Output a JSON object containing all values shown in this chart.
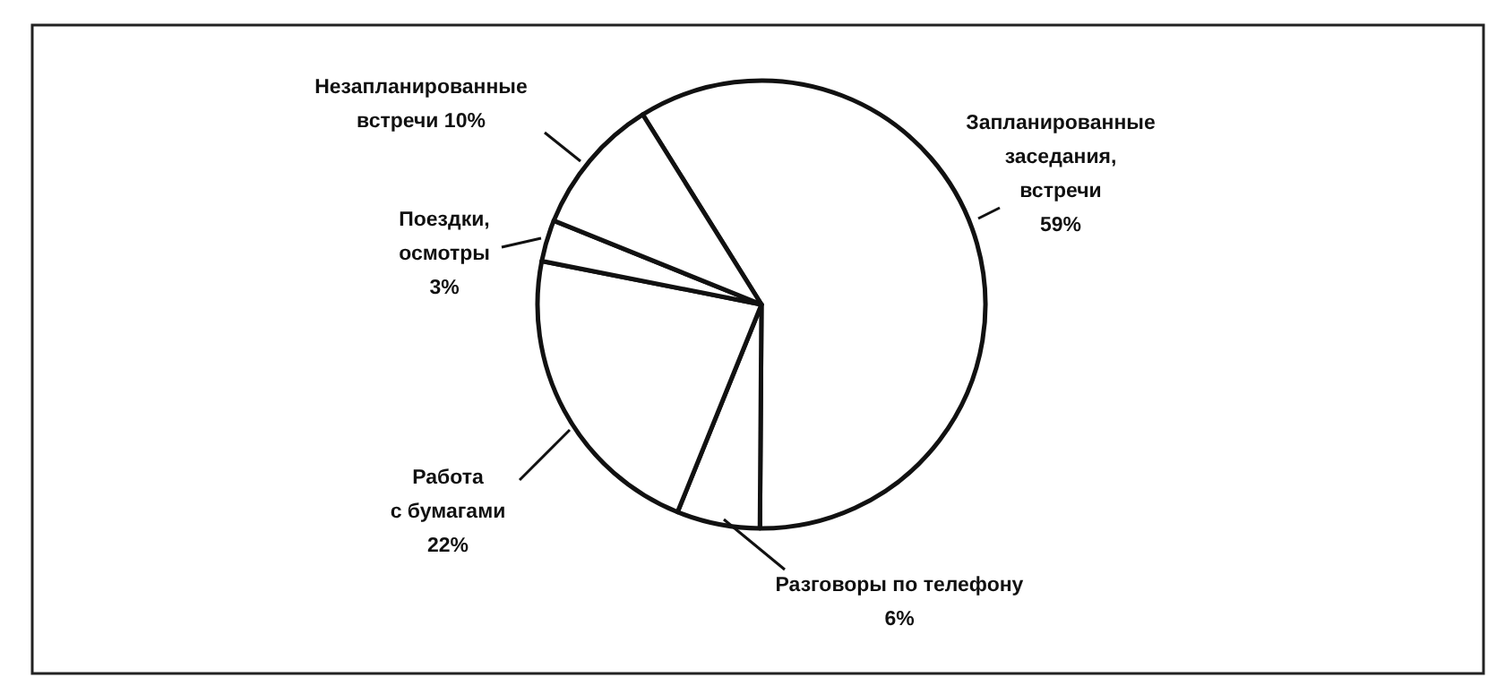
{
  "chart_data": {
    "type": "pie",
    "categories": [
      "Запланированные\nзаседания,\nвстречи",
      "Разговоры по телефону",
      "Работа\nс бумагами",
      "Поездки,\nосмотры",
      "Незапланированные\nвстречи"
    ],
    "values": [
      59,
      6,
      22,
      3,
      10
    ],
    "value_labels": [
      "59%",
      "6%",
      "22%",
      "3%",
      "10%"
    ],
    "colors": [
      "#ffffff",
      "#ffffff",
      "#ffffff",
      "#ffffff",
      "#ffffff"
    ]
  }
}
